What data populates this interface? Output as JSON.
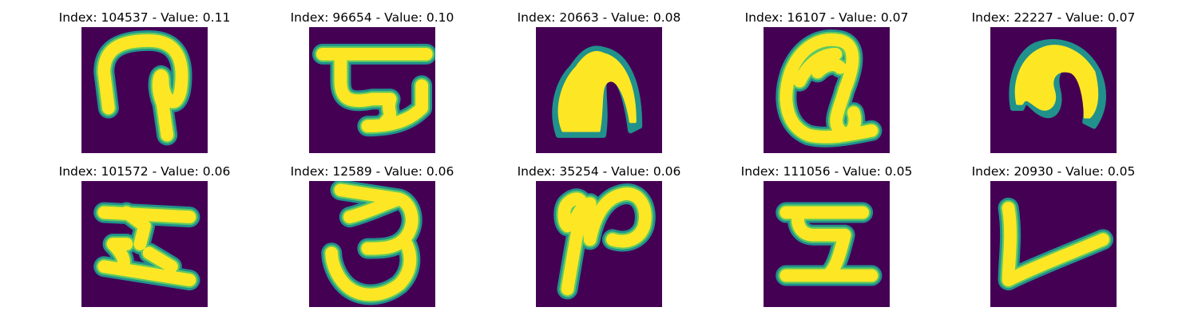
{
  "colors": {
    "background": "#440154",
    "stroke_core": "#fde725",
    "stroke_mid": "#5ec962",
    "stroke_edge": "#21918c"
  },
  "panels": [
    {
      "title": "Index: 104537 - Value: 0.11",
      "glyph": "glyph-1"
    },
    {
      "title": "Index: 96654 - Value: 0.10",
      "glyph": "glyph-2"
    },
    {
      "title": "Index: 20663 - Value: 0.08",
      "glyph": "glyph-3"
    },
    {
      "title": "Index: 16107 - Value: 0.07",
      "glyph": "glyph-4"
    },
    {
      "title": "Index: 22227 - Value: 0.07",
      "glyph": "glyph-5"
    },
    {
      "title": "Index: 101572 - Value: 0.06",
      "glyph": "glyph-6"
    },
    {
      "title": "Index: 12589 - Value: 0.06",
      "glyph": "glyph-7"
    },
    {
      "title": "Index: 35254 - Value: 0.06",
      "glyph": "glyph-8"
    },
    {
      "title": "Index: 111056 - Value: 0.05",
      "glyph": "glyph-9"
    },
    {
      "title": "Index: 20930 - Value: 0.05",
      "glyph": "glyph-10"
    }
  ]
}
